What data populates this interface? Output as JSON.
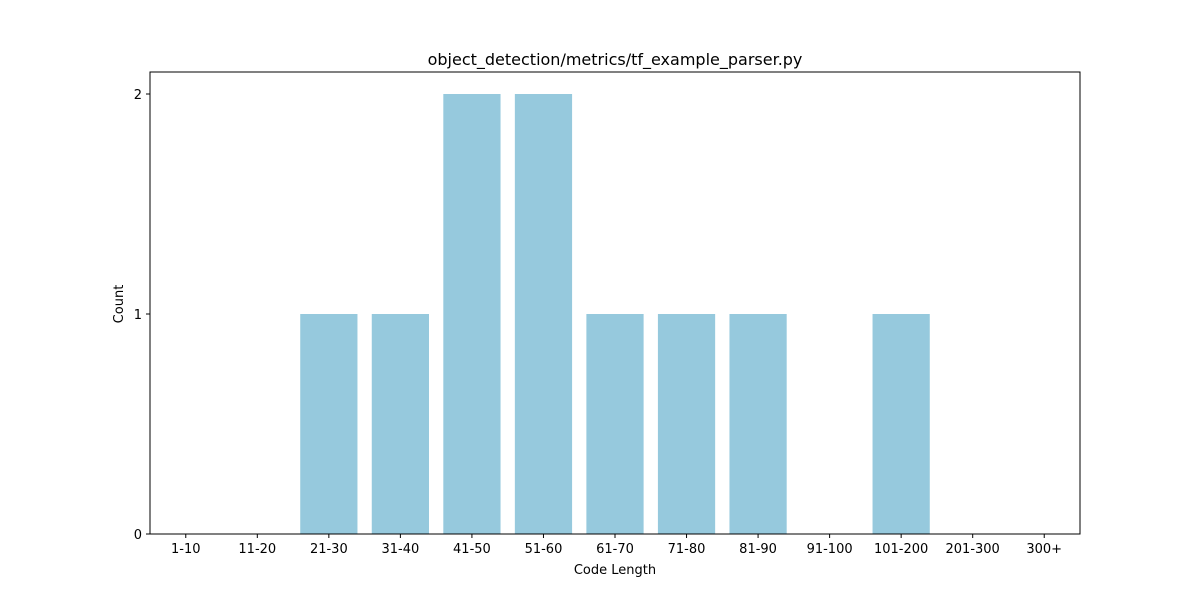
{
  "chart_data": {
    "type": "bar",
    "title": "object_detection/metrics/tf_example_parser.py",
    "xlabel": "Code Length",
    "ylabel": "Count",
    "categories": [
      "1-10",
      "11-20",
      "21-30",
      "31-40",
      "41-50",
      "51-60",
      "61-70",
      "71-80",
      "81-90",
      "91-100",
      "101-200",
      "201-300",
      "300+"
    ],
    "values": [
      0,
      0,
      1,
      1,
      2,
      2,
      1,
      1,
      1,
      0,
      1,
      0,
      0
    ],
    "ylim": [
      0,
      2.1
    ],
    "yticks": [
      0,
      1,
      2
    ],
    "grid": false,
    "bar_color": "#96c9dd"
  }
}
